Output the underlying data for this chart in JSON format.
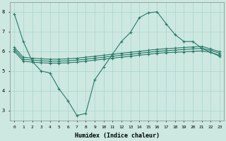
{
  "bg_color": "#cce8e0",
  "line_color": "#2a7a6a",
  "grid_color": "#aad4cc",
  "xlabel": "Humidex (Indice chaleur)",
  "xlim": [
    -0.5,
    23.5
  ],
  "ylim": [
    2.5,
    8.5
  ],
  "xticks": [
    0,
    1,
    2,
    3,
    4,
    5,
    6,
    7,
    8,
    9,
    10,
    11,
    12,
    13,
    14,
    15,
    16,
    17,
    18,
    19,
    20,
    21,
    22,
    23
  ],
  "yticks": [
    3,
    4,
    5,
    6,
    7,
    8
  ],
  "line1_x": [
    0,
    1,
    2,
    3,
    4,
    5,
    6,
    7,
    8,
    9,
    10,
    11,
    12,
    13,
    14,
    15,
    16,
    17,
    18,
    19,
    20,
    21,
    22,
    23
  ],
  "line1_y": [
    7.9,
    6.5,
    5.5,
    5.0,
    4.9,
    4.1,
    3.5,
    2.75,
    2.85,
    4.55,
    5.2,
    5.85,
    6.5,
    6.95,
    7.7,
    7.95,
    8.0,
    7.4,
    6.85,
    6.5,
    6.5,
    6.15,
    5.95,
    5.75
  ],
  "line2_x": [
    0,
    1,
    2,
    3,
    4,
    5,
    6,
    7,
    8,
    9,
    10,
    11,
    12,
    13,
    14,
    15,
    16,
    17,
    18,
    19,
    20,
    21,
    22,
    23
  ],
  "line2_y": [
    6.0,
    5.5,
    5.45,
    5.42,
    5.4,
    5.4,
    5.42,
    5.45,
    5.5,
    5.55,
    5.6,
    5.65,
    5.7,
    5.75,
    5.8,
    5.85,
    5.9,
    5.93,
    5.95,
    5.97,
    6.0,
    6.02,
    5.95,
    5.8
  ],
  "line3_x": [
    0,
    1,
    2,
    3,
    4,
    5,
    6,
    7,
    8,
    9,
    10,
    11,
    12,
    13,
    14,
    15,
    16,
    17,
    18,
    19,
    20,
    21,
    22,
    23
  ],
  "line3_y": [
    6.1,
    5.6,
    5.55,
    5.52,
    5.5,
    5.5,
    5.52,
    5.55,
    5.6,
    5.65,
    5.7,
    5.75,
    5.8,
    5.85,
    5.9,
    5.95,
    6.0,
    6.03,
    6.06,
    6.09,
    6.12,
    6.15,
    6.05,
    5.9
  ],
  "line4_x": [
    0,
    1,
    2,
    3,
    4,
    5,
    6,
    7,
    8,
    9,
    10,
    11,
    12,
    13,
    14,
    15,
    16,
    17,
    18,
    19,
    20,
    21,
    22,
    23
  ],
  "line4_y": [
    6.2,
    5.7,
    5.65,
    5.62,
    5.6,
    5.6,
    5.62,
    5.65,
    5.7,
    5.75,
    5.8,
    5.85,
    5.9,
    5.95,
    6.0,
    6.05,
    6.1,
    6.13,
    6.16,
    6.19,
    6.22,
    6.25,
    6.12,
    5.98
  ]
}
